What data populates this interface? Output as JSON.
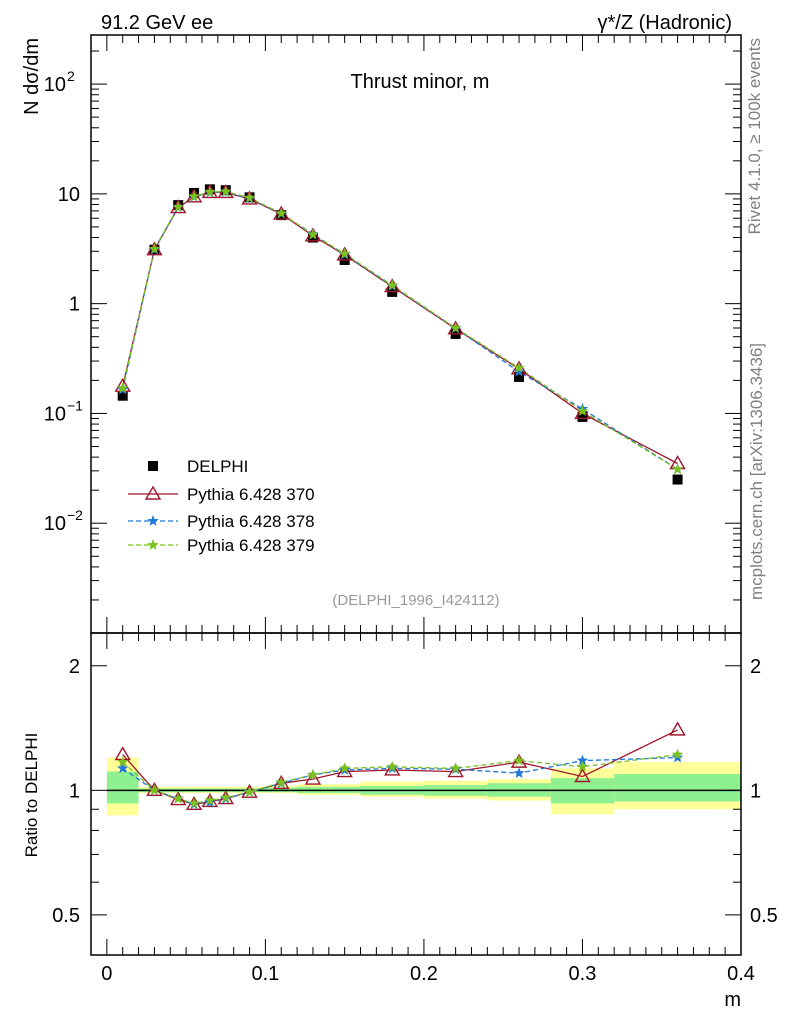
{
  "header": {
    "left": "91.2 GeV ee",
    "right": "γ*/Z (Hadronic)"
  },
  "side_text": {
    "rivet": "Rivet 4.1.0, ≥ 100k events",
    "mcplots": "mcplots.cern.ch [arXiv:1306.3436]"
  },
  "chart_data": [
    {
      "type": "scatter",
      "title": "Thrust minor, m",
      "ylabel": "N  dσ/dm",
      "xlabel": "m",
      "yscale": "log",
      "xlim": [
        -0.01,
        0.4
      ],
      "ylim": [
        0.001,
        280
      ],
      "x_ticks": [
        "0",
        "0.1",
        "0.2",
        "0.3",
        "0.4"
      ],
      "y_ticks": [
        {
          "value": 0.01,
          "base": "10",
          "exp": "−2"
        },
        {
          "value": 0.1,
          "base": "10",
          "exp": "−1"
        },
        {
          "value": 1,
          "base": "1",
          "exp": ""
        },
        {
          "value": 10,
          "base": "10",
          "exp": ""
        },
        {
          "value": 100,
          "base": "10",
          "exp": "2"
        }
      ],
      "reference_label": "(DELPHI_1996_I424112)",
      "x": [
        0.01,
        0.03,
        0.045,
        0.055,
        0.065,
        0.075,
        0.09,
        0.11,
        0.13,
        0.15,
        0.18,
        0.22,
        0.26,
        0.3,
        0.36
      ],
      "series": [
        {
          "name": "DELPHI",
          "color": "#000000",
          "marker": "square",
          "line": "none",
          "values": [
            0.145,
            3.1,
            7.9,
            10.2,
            11.0,
            10.8,
            9.3,
            6.4,
            4.0,
            2.5,
            1.28,
            0.53,
            0.215,
            0.093,
            0.025
          ]
        },
        {
          "name": "Pythia 6.428 370",
          "color": "#a0152d",
          "marker": "triangle",
          "line": "solid",
          "values": [
            0.177,
            3.1,
            7.5,
            9.4,
            10.3,
            10.3,
            9.0,
            6.55,
            4.15,
            2.78,
            1.43,
            0.59,
            0.255,
            0.1,
            0.035
          ]
        },
        {
          "name": "Pythia 6.428 378",
          "color": "#1f78d8",
          "marker": "star",
          "line": "dashed",
          "values": [
            0.165,
            3.1,
            7.55,
            9.4,
            10.3,
            10.4,
            9.1,
            6.6,
            4.3,
            2.8,
            1.45,
            0.595,
            0.24,
            0.11,
            0.031
          ]
        },
        {
          "name": "Pythia 6.428 379",
          "color": "#7ac11f",
          "marker": "star",
          "line": "dashed",
          "values": [
            0.17,
            3.15,
            7.6,
            9.5,
            10.4,
            10.5,
            9.2,
            6.65,
            4.25,
            2.85,
            1.47,
            0.6,
            0.26,
            0.105,
            0.031
          ]
        }
      ]
    },
    {
      "type": "scatter",
      "ylabel": "Ratio to DELPHI",
      "xlabel": "m",
      "yscale": "log",
      "xlim": [
        -0.01,
        0.4
      ],
      "ylim": [
        0.4,
        2.4
      ],
      "y_ticks": [
        {
          "value": 0.5,
          "label": "0.5"
        },
        {
          "value": 1,
          "label": "1"
        },
        {
          "value": 2,
          "label": "2"
        }
      ],
      "reference": 1,
      "bins": [
        0.0,
        0.02,
        0.04,
        0.05,
        0.06,
        0.07,
        0.08,
        0.1,
        0.12,
        0.14,
        0.16,
        0.2,
        0.24,
        0.28,
        0.32,
        0.4
      ],
      "band_outer": [
        [
          0.87,
          1.2
        ],
        [
          0.985,
          1.02
        ],
        [
          0.985,
          1.02
        ],
        [
          0.985,
          1.02
        ],
        [
          0.985,
          1.02
        ],
        [
          0.985,
          1.02
        ],
        [
          0.985,
          1.02
        ],
        [
          0.985,
          1.025
        ],
        [
          0.975,
          1.035
        ],
        [
          0.975,
          1.035
        ],
        [
          0.965,
          1.05
        ],
        [
          0.955,
          1.055
        ],
        [
          0.945,
          1.065
        ],
        [
          0.875,
          1.13
        ],
        [
          0.9,
          1.17
        ]
      ],
      "band_inner": [
        [
          0.93,
          1.11
        ],
        [
          0.99,
          1.01
        ],
        [
          0.99,
          1.01
        ],
        [
          0.99,
          1.01
        ],
        [
          0.99,
          1.01
        ],
        [
          0.99,
          1.01
        ],
        [
          0.99,
          1.01
        ],
        [
          0.99,
          1.015
        ],
        [
          0.985,
          1.02
        ],
        [
          0.985,
          1.02
        ],
        [
          0.975,
          1.025
        ],
        [
          0.97,
          1.03
        ],
        [
          0.965,
          1.04
        ],
        [
          0.93,
          1.07
        ],
        [
          0.94,
          1.095
        ]
      ],
      "x": [
        0.01,
        0.03,
        0.045,
        0.055,
        0.065,
        0.075,
        0.09,
        0.11,
        0.13,
        0.15,
        0.18,
        0.22,
        0.26,
        0.3,
        0.36
      ],
      "series": [
        {
          "name": "Pythia 6.428 370",
          "color": "#a0152d",
          "marker": "triangle",
          "line": "solid",
          "values": [
            1.22,
            1.0,
            0.95,
            0.925,
            0.94,
            0.955,
            0.99,
            1.04,
            1.065,
            1.11,
            1.12,
            1.11,
            1.17,
            1.08,
            1.4
          ]
        },
        {
          "name": "Pythia 6.428 378",
          "color": "#1f78d8",
          "marker": "star",
          "line": "dashed",
          "values": [
            1.13,
            1.0,
            0.955,
            0.925,
            0.935,
            0.955,
            0.99,
            1.04,
            1.09,
            1.12,
            1.13,
            1.125,
            1.1,
            1.18,
            1.2
          ]
        },
        {
          "name": "Pythia 6.428 379",
          "color": "#7ac11f",
          "marker": "star",
          "line": "dashed",
          "values": [
            1.17,
            1.0,
            0.955,
            0.93,
            0.945,
            0.96,
            0.99,
            1.045,
            1.09,
            1.13,
            1.14,
            1.13,
            1.18,
            1.14,
            1.22
          ]
        }
      ]
    }
  ]
}
